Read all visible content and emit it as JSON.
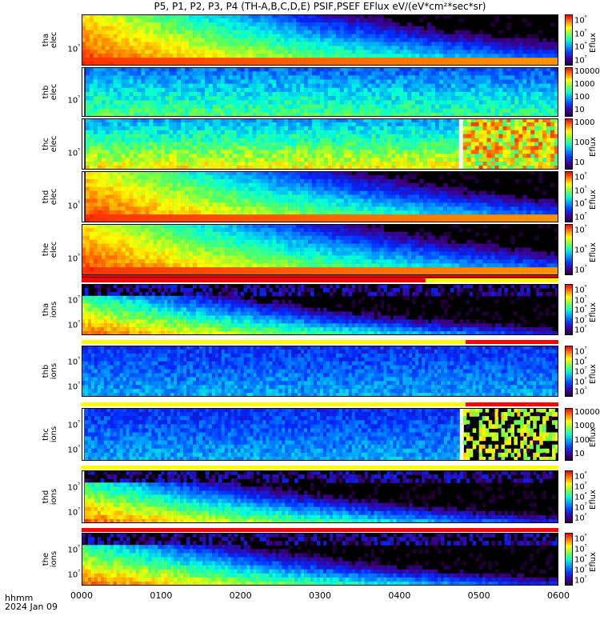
{
  "title": "P5, P1, P2, P3, P4 (TH-A,B,C,D,E) PSIF,PSEF EFlux eV/(eV*cm²*sec*sr)",
  "x_axis": {
    "label_line1": "hhmm",
    "label_line2": "2024 Jan 09",
    "ticks": [
      "0000",
      "0100",
      "0200",
      "0300",
      "0400",
      "0500",
      "0600"
    ]
  },
  "colorbar_unit": "Eflux",
  "chart_data": [
    {
      "type": "heatmap",
      "probe": "tha",
      "species": "elec",
      "ylabel": "tha\nelec",
      "yticks": [
        "10⁵"
      ],
      "colorbar_ticks": [
        "10⁶",
        "10⁵",
        "10⁴",
        "10³"
      ],
      "colorbar_unit": "Eflux",
      "data_start_hhmm": "0000",
      "intensity": "high"
    },
    {
      "type": "heatmap",
      "probe": "thb",
      "species": "elec",
      "ylabel": "thb\nelec",
      "yticks": [
        "10⁵"
      ],
      "colorbar_ticks": [
        "10000",
        "1000",
        "100",
        "10"
      ],
      "colorbar_unit": "",
      "data_start_hhmm": "0002",
      "intensity": "low"
    },
    {
      "type": "heatmap",
      "probe": "thc",
      "species": "elec",
      "ylabel": "thc\nelec",
      "yticks": [
        "10⁵"
      ],
      "colorbar_ticks": [
        "1000",
        "100",
        "10"
      ],
      "colorbar_unit": "Eflux",
      "data_start_hhmm": "0002",
      "data_gap_hhmm": [
        "0445",
        "0447"
      ],
      "intensity": "mid"
    },
    {
      "type": "heatmap",
      "probe": "thd",
      "species": "elec",
      "ylabel": "thd\nelec",
      "yticks": [
        "10⁵"
      ],
      "colorbar_ticks": [
        "10⁶",
        "10⁵",
        "10⁴",
        "10³"
      ],
      "colorbar_unit": "Eflux",
      "data_start_hhmm": "0002",
      "intensity": "high"
    },
    {
      "type": "heatmap",
      "probe": "the",
      "species": "elec",
      "ylabel": "the\nelec",
      "yticks": [
        "10⁵"
      ],
      "colorbar_ticks": [
        "10⁵",
        "10⁴",
        "10³"
      ],
      "colorbar_unit": "Eflux",
      "data_start_hhmm": "0000",
      "intensity": "high"
    },
    {
      "type": "heatmap",
      "probe": "tha",
      "species": "ions",
      "ylabel": "tha\nions",
      "yticks": [
        "10⁵",
        "10³"
      ],
      "colorbar_ticks": [
        "10⁶",
        "10⁵",
        "10⁴",
        "10³",
        "10²"
      ],
      "colorbar_unit": "Eflux",
      "data_start_hhmm": "0000",
      "intensity": "ions"
    },
    {
      "type": "heatmap",
      "probe": "thb",
      "species": "ions",
      "ylabel": "thb\nions",
      "yticks": [
        "10⁵",
        "10³"
      ],
      "colorbar_ticks": [
        "10⁵",
        "10⁴",
        "10³",
        "10²",
        "10¹"
      ],
      "colorbar_unit": "Eflux",
      "data_start_hhmm": "0000",
      "intensity": "lowions"
    },
    {
      "type": "heatmap",
      "probe": "thc",
      "species": "ions",
      "ylabel": "thc\nions",
      "yticks": [
        "10⁵",
        "10³"
      ],
      "colorbar_ticks": [
        "10000",
        "1000",
        "100",
        "10"
      ],
      "colorbar_unit": "Eflux",
      "data_start_hhmm": "0002",
      "data_gap_hhmm": [
        "0445",
        "0447"
      ],
      "intensity": "lowions"
    },
    {
      "type": "heatmap",
      "probe": "thd",
      "species": "ions",
      "ylabel": "thd\nions",
      "yticks": [
        "10⁵",
        "10³"
      ],
      "colorbar_ticks": [
        "10⁶",
        "10⁵",
        "10⁴",
        "10³",
        "10²"
      ],
      "colorbar_unit": "Eflux",
      "data_start_hhmm": "0002",
      "intensity": "ions"
    },
    {
      "type": "heatmap",
      "probe": "the",
      "species": "ions",
      "ylabel": "the\nions",
      "yticks": [
        "10⁵",
        "10³"
      ],
      "colorbar_ticks": [
        "10⁶",
        "10⁵",
        "10⁴",
        "10³",
        "10²"
      ],
      "colorbar_unit": "Eflux",
      "data_start_hhmm": "0000",
      "intensity": "ions"
    }
  ],
  "flag_bars": [
    {
      "segments": [
        {
          "from": "0000",
          "to": "0600",
          "color": "#ff0000"
        },
        {
          "from": "0000",
          "to": "0600",
          "color": "#000000",
          "thin": true
        }
      ]
    },
    {
      "segments": [
        {
          "from": "0000",
          "to": "0420",
          "color": "#ff0000"
        },
        {
          "from": "0420",
          "to": "0600",
          "color": "#ffff00"
        }
      ]
    },
    {
      "segments": [
        {
          "from": "0000",
          "to": "0450",
          "color": "#ffff00"
        },
        {
          "from": "0450",
          "to": "0600",
          "color": "#ff0000"
        }
      ]
    },
    {
      "segments": [
        {
          "from": "0000",
          "to": "0450",
          "color": "#ffff00"
        },
        {
          "from": "0450",
          "to": "0600",
          "color": "#ff0000"
        }
      ]
    },
    {
      "segments": [
        {
          "from": "0000",
          "to": "0600",
          "color": "#ffff00"
        }
      ]
    },
    {
      "segments": [
        {
          "from": "0000",
          "to": "0600",
          "color": "#ff0000"
        }
      ]
    }
  ]
}
